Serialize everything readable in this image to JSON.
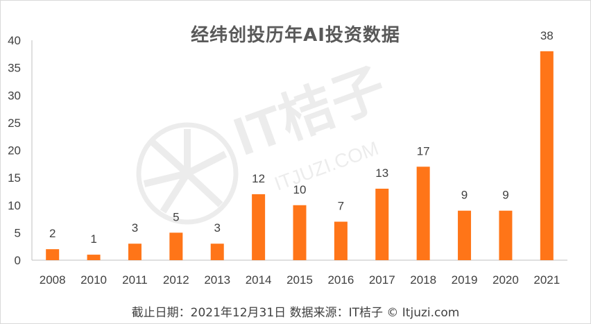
{
  "chart_data": {
    "type": "bar",
    "title": "经纬创投历年AI投资数据",
    "categories": [
      "2008",
      "2010",
      "2011",
      "2012",
      "2013",
      "2014",
      "2015",
      "2016",
      "2017",
      "2018",
      "2019",
      "2020",
      "2021"
    ],
    "values": [
      2,
      1,
      3,
      5,
      3,
      12,
      10,
      7,
      13,
      17,
      9,
      9,
      38
    ],
    "ylim": [
      0,
      40
    ],
    "yticks": [
      0,
      5,
      10,
      15,
      20,
      25,
      30,
      35,
      40
    ],
    "xlabel": "",
    "ylabel": "",
    "grid": false,
    "legend": "none",
    "bar_color": "#ff7518",
    "data_labels": true
  },
  "footer": {
    "text": "截止日期：2021年12月31日   数据来源：IT桔子 © Itjuzi.com"
  },
  "watermark": {
    "text": "IT桔子",
    "url": "ITJUZI.COM"
  }
}
